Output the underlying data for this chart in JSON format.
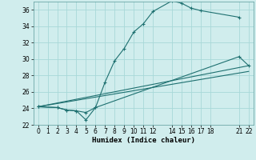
{
  "xlabel": "Humidex (Indice chaleur)",
  "bg_color": "#d0eded",
  "grid_color": "#a8d8d8",
  "line_color": "#1e7070",
  "xlim": [
    -0.5,
    22.5
  ],
  "ylim": [
    22,
    37
  ],
  "xticks": [
    0,
    1,
    2,
    3,
    4,
    5,
    6,
    7,
    8,
    9,
    10,
    11,
    12,
    14,
    15,
    16,
    17,
    18,
    21,
    22
  ],
  "yticks": [
    22,
    24,
    26,
    28,
    30,
    32,
    34,
    36
  ],
  "line1_x": [
    0,
    2,
    3,
    4,
    5,
    6,
    7,
    8,
    9,
    10,
    11,
    12,
    14,
    15,
    16,
    17,
    21
  ],
  "line1_y": [
    24.2,
    24.1,
    23.8,
    23.7,
    23.5,
    24.1,
    27.2,
    29.8,
    31.3,
    33.3,
    34.3,
    35.8,
    37.1,
    36.8,
    36.2,
    35.9,
    35.1
  ],
  "line2_x": [
    0,
    2,
    3,
    4,
    5,
    6,
    21,
    22
  ],
  "line2_y": [
    24.2,
    24.1,
    23.8,
    23.7,
    22.6,
    24.1,
    30.3,
    29.2
  ],
  "line3_x": [
    0,
    22
  ],
  "line3_y": [
    24.2,
    29.2
  ],
  "line4_x": [
    0,
    22
  ],
  "line4_y": [
    24.2,
    28.5
  ]
}
